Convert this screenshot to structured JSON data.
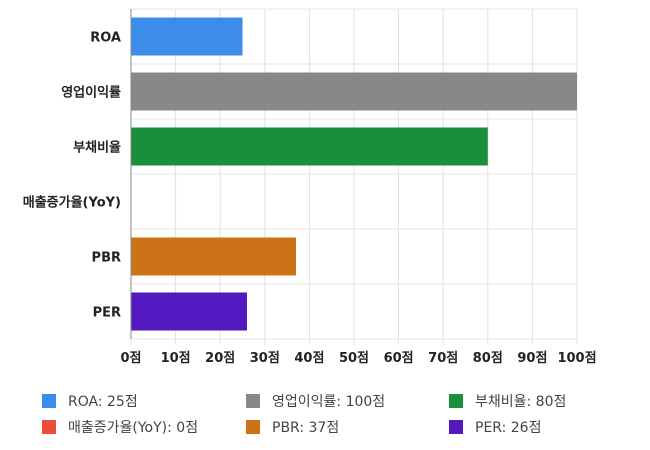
{
  "chart_data": {
    "type": "bar",
    "orientation": "horizontal",
    "categories": [
      "ROA",
      "영업이익률",
      "부채비율",
      "매출증가율(YoY)",
      "PBR",
      "PER"
    ],
    "values": [
      25,
      100,
      80,
      0,
      37,
      26
    ],
    "colors": [
      "#3b8de9",
      "#888888",
      "#1a8f3a",
      "#ec4c3c",
      "#cc7318",
      "#5119bf"
    ],
    "xlim": [
      0,
      100
    ],
    "tick_step": 10,
    "tick_labels": [
      "0점",
      "10점",
      "20점",
      "30점",
      "40점",
      "50점",
      "60점",
      "70점",
      "80점",
      "90점",
      "100점"
    ],
    "grid": true,
    "legend_position": "bottom",
    "title": "",
    "xlabel": "",
    "ylabel": ""
  },
  "legend": {
    "items": [
      {
        "label": "ROA: 25점",
        "color": "#3b8de9"
      },
      {
        "label": "영업이익률: 100점",
        "color": "#888888"
      },
      {
        "label": "부채비율: 80점",
        "color": "#1a8f3a"
      },
      {
        "label": "매출증가율(YoY): 0점",
        "color": "#ec4c3c"
      },
      {
        "label": "PBR: 37점",
        "color": "#cc7318"
      },
      {
        "label": "PER: 26점",
        "color": "#5119bf"
      }
    ]
  }
}
